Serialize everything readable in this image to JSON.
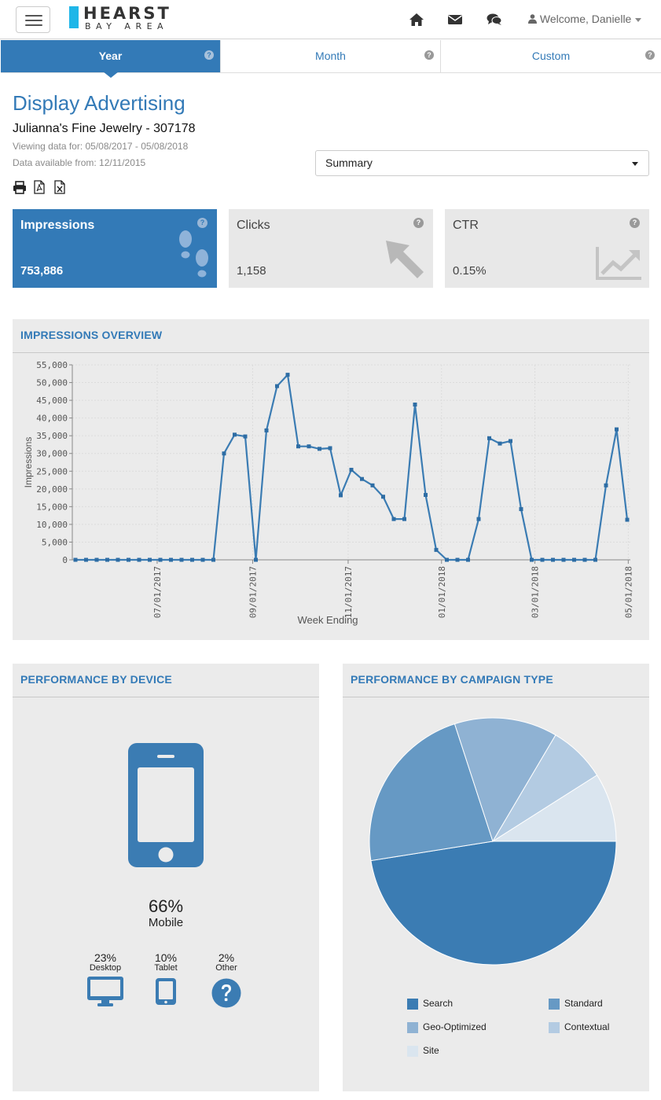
{
  "brand": {
    "line1": "HEARST",
    "line2": "BAY AREA"
  },
  "nav": {
    "icons": [
      "home-icon",
      "envelope-icon",
      "comments-icon",
      "user-icon"
    ],
    "welcome": "Welcome, Danielle"
  },
  "tabs": [
    {
      "label": "Year",
      "active": true
    },
    {
      "label": "Month",
      "active": false
    },
    {
      "label": "Custom",
      "active": false
    }
  ],
  "header": {
    "title": "Display Advertising",
    "advertiser": "Julianna's Fine Jewelry - 307178",
    "viewing": "Viewing data for: 05/08/2017 - 05/08/2018",
    "available": "Data available from: 12/11/2015",
    "view_select": "Summary",
    "exports": [
      "print-icon",
      "pdf-icon",
      "excel-icon"
    ]
  },
  "kpis": [
    {
      "label": "Impressions",
      "value": "753,886",
      "icon": "footsteps-icon"
    },
    {
      "label": "Clicks",
      "value": "1,158",
      "icon": "cursor-arrow-icon"
    },
    {
      "label": "CTR",
      "value": "0.15%",
      "icon": "trend-chart-icon"
    }
  ],
  "overview": {
    "title": "IMPRESSIONS OVERVIEW"
  },
  "device": {
    "title": "PERFORMANCE BY DEVICE",
    "main": {
      "pct": "66%",
      "label": "Mobile"
    },
    "others": [
      {
        "pct": "23%",
        "label": "Desktop",
        "icon": "desktop-icon"
      },
      {
        "pct": "10%",
        "label": "Tablet",
        "icon": "tablet-icon"
      },
      {
        "pct": "2%",
        "label": "Other",
        "icon": "question-circle-icon"
      }
    ]
  },
  "campaign": {
    "title": "PERFORMANCE BY CAMPAIGN TYPE"
  },
  "colors": {
    "primary": "#337ab7",
    "panel_bg": "#ebebeb",
    "card_bg": "#e8e8e8",
    "logo_accent": "#1fb6e8"
  },
  "chart_data": [
    {
      "type": "line",
      "xlabel": "Week Ending",
      "ylabel": "Impressions",
      "ylim": [
        0,
        55000
      ],
      "yticks": [
        "0",
        "5,000",
        "10,000",
        "15,000",
        "20,000",
        "25,000",
        "30,000",
        "35,000",
        "40,000",
        "45,000",
        "50,000",
        "55,000"
      ],
      "xticks": [
        "07/01/2017",
        "09/01/2017",
        "11/01/2017",
        "01/01/2018",
        "03/01/2018",
        "05/01/2018"
      ],
      "grid": true,
      "series": [
        {
          "values": [
            0,
            0,
            0,
            0,
            0,
            0,
            0,
            0,
            0,
            0,
            0,
            0,
            0,
            0,
            30000,
            35300,
            34800,
            0,
            36500,
            49000,
            52200,
            32000,
            32000,
            31300,
            31500,
            18200,
            25400,
            22800,
            21000,
            17800,
            11500,
            11500,
            43800,
            18300,
            2800,
            0,
            0,
            0,
            11500,
            34300,
            32800,
            33500,
            14300,
            0,
            0,
            0,
            0,
            0,
            0,
            0,
            21000,
            36800,
            11300
          ]
        }
      ]
    },
    {
      "type": "pie",
      "legend": "bottom",
      "slices": [
        {
          "label": "Search",
          "value": 47.5,
          "color": "#3b7cb3"
        },
        {
          "label": "Standard",
          "value": 22.5,
          "color": "#6699c4"
        },
        {
          "label": "Geo-Optimized",
          "value": 13.5,
          "color": "#8fb2d3"
        },
        {
          "label": "Contextual",
          "value": 7.5,
          "color": "#b3cbe2"
        },
        {
          "label": "Site",
          "value": 9.0,
          "color": "#dae5ef"
        }
      ]
    }
  ]
}
